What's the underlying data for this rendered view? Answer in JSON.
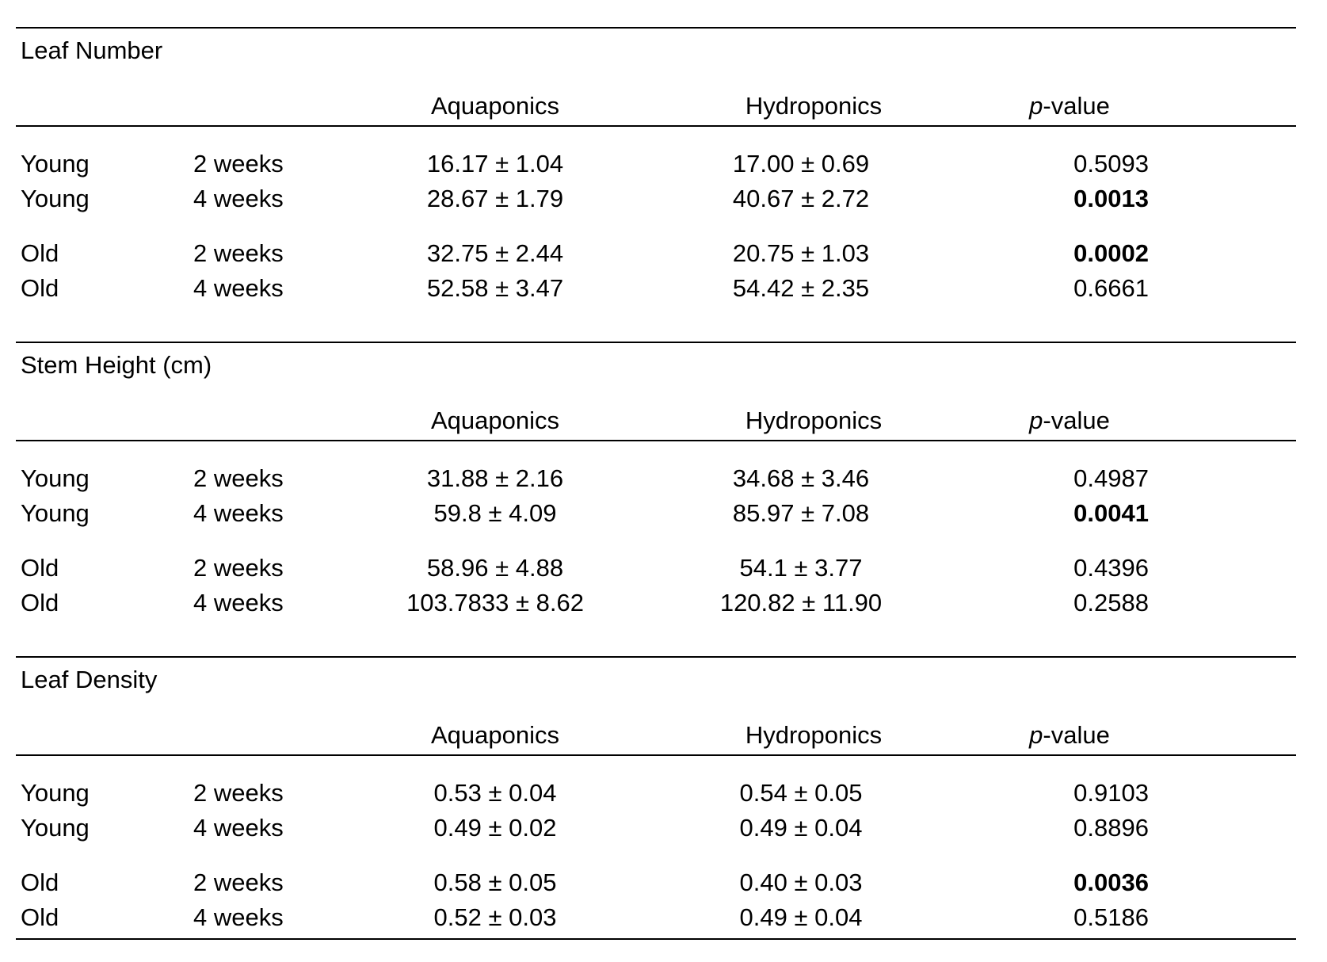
{
  "columns": {
    "aquaponics": "Aquaponics",
    "hydroponics": "Hydroponics",
    "p_prefix": "p",
    "p_suffix": "-value"
  },
  "sections": [
    {
      "title": "Leaf Number",
      "rows": [
        {
          "group": "Young",
          "duration": "2 weeks",
          "aquaponics": "16.17 ± 1.04",
          "hydroponics": "17.00 ± 0.69",
          "p": "0.5093",
          "significant": false
        },
        {
          "group": "Young",
          "duration": "4 weeks",
          "aquaponics": "28.67 ± 1.79",
          "hydroponics": "40.67 ± 2.72",
          "p": "0.0013",
          "significant": true
        },
        {
          "group": "Old",
          "duration": "2 weeks",
          "aquaponics": "32.75 ± 2.44",
          "hydroponics": "20.75 ± 1.03",
          "p": "0.0002",
          "significant": true
        },
        {
          "group": "Old",
          "duration": "4 weeks",
          "aquaponics": "52.58 ± 3.47",
          "hydroponics": "54.42 ± 2.35",
          "p": "0.6661",
          "significant": false
        }
      ]
    },
    {
      "title": "Stem Height (cm)",
      "rows": [
        {
          "group": "Young",
          "duration": "2 weeks",
          "aquaponics": "31.88 ± 2.16",
          "hydroponics": "34.68 ± 3.46",
          "p": "0.4987",
          "significant": false
        },
        {
          "group": "Young",
          "duration": "4 weeks",
          "aquaponics": "59.8 ± 4.09",
          "hydroponics": "85.97 ± 7.08",
          "p": "0.0041",
          "significant": true
        },
        {
          "group": "Old",
          "duration": "2 weeks",
          "aquaponics": "58.96 ± 4.88",
          "hydroponics": "54.1 ± 3.77",
          "p": "0.4396",
          "significant": false
        },
        {
          "group": "Old",
          "duration": "4 weeks",
          "aquaponics": "103.7833 ± 8.62",
          "hydroponics": "120.82 ± 11.90",
          "p": "0.2588",
          "significant": false
        }
      ]
    },
    {
      "title": "Leaf Density",
      "rows": [
        {
          "group": "Young",
          "duration": "2 weeks",
          "aquaponics": "0.53 ± 0.04",
          "hydroponics": "0.54 ± 0.05",
          "p": "0.9103",
          "significant": false
        },
        {
          "group": "Young",
          "duration": "4 weeks",
          "aquaponics": "0.49 ± 0.02",
          "hydroponics": "0.49 ± 0.04",
          "p": "0.8896",
          "significant": false
        },
        {
          "group": "Old",
          "duration": "2 weeks",
          "aquaponics": "0.58 ± 0.05",
          "hydroponics": "0.40 ± 0.03",
          "p": "0.0036",
          "significant": true
        },
        {
          "group": "Old",
          "duration": "4 weeks",
          "aquaponics": "0.52 ± 0.03",
          "hydroponics": "0.49 ± 0.04",
          "p": "0.5186",
          "significant": false
        }
      ]
    }
  ]
}
